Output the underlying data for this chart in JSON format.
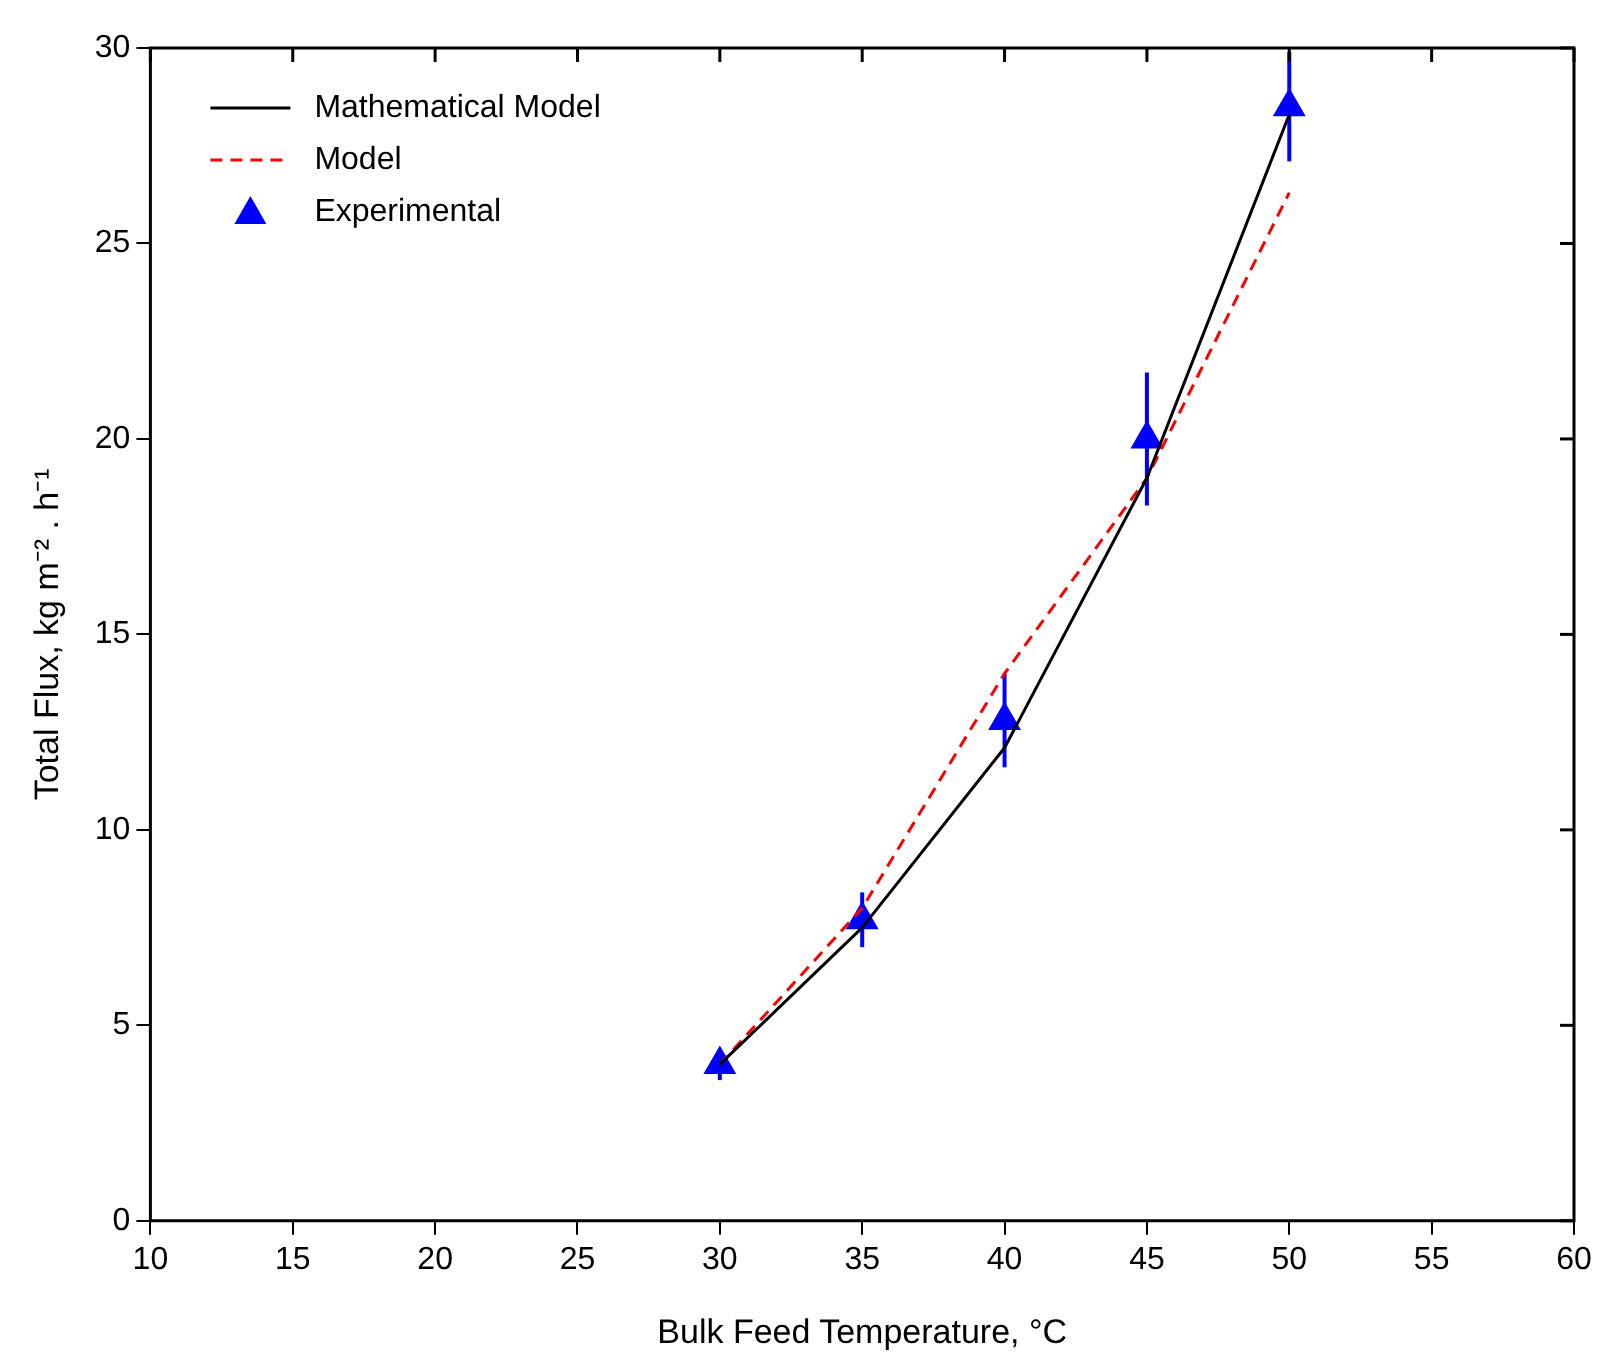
{
  "chart_data": {
    "type": "line",
    "xlabel": "Bulk Feed Temperature, °C",
    "ylabel": "Total Flux, kg m⁻² . h⁻¹",
    "x": [
      30,
      35,
      40,
      45,
      50
    ],
    "series": [
      {
        "name": "Mathematical Model",
        "color": "#000000",
        "values": [
          4.0,
          7.5,
          12.1,
          19.0,
          28.3
        ],
        "line_style": "solid",
        "marker": "none"
      },
      {
        "name": "Model",
        "color": "#ff0000",
        "values": [
          4.0,
          8.0,
          14.0,
          19.0,
          26.3
        ],
        "line_style": "dashed",
        "marker": "none"
      },
      {
        "name": "Experimental",
        "type": "scatter",
        "color": "#0000ff",
        "values": [
          4.0,
          7.7,
          12.8,
          20.0,
          28.5
        ],
        "errors": [
          0.4,
          0.7,
          1.2,
          1.7,
          1.4
        ],
        "marker": "triangle"
      }
    ],
    "xlim": [
      10,
      60
    ],
    "xticks": [
      10,
      15,
      20,
      25,
      30,
      35,
      40,
      45,
      50,
      55,
      60
    ],
    "ylim": [
      0,
      30
    ],
    "yticks": [
      0,
      5,
      10,
      15,
      20,
      25,
      30
    ],
    "grid": false,
    "legend": "top left"
  }
}
